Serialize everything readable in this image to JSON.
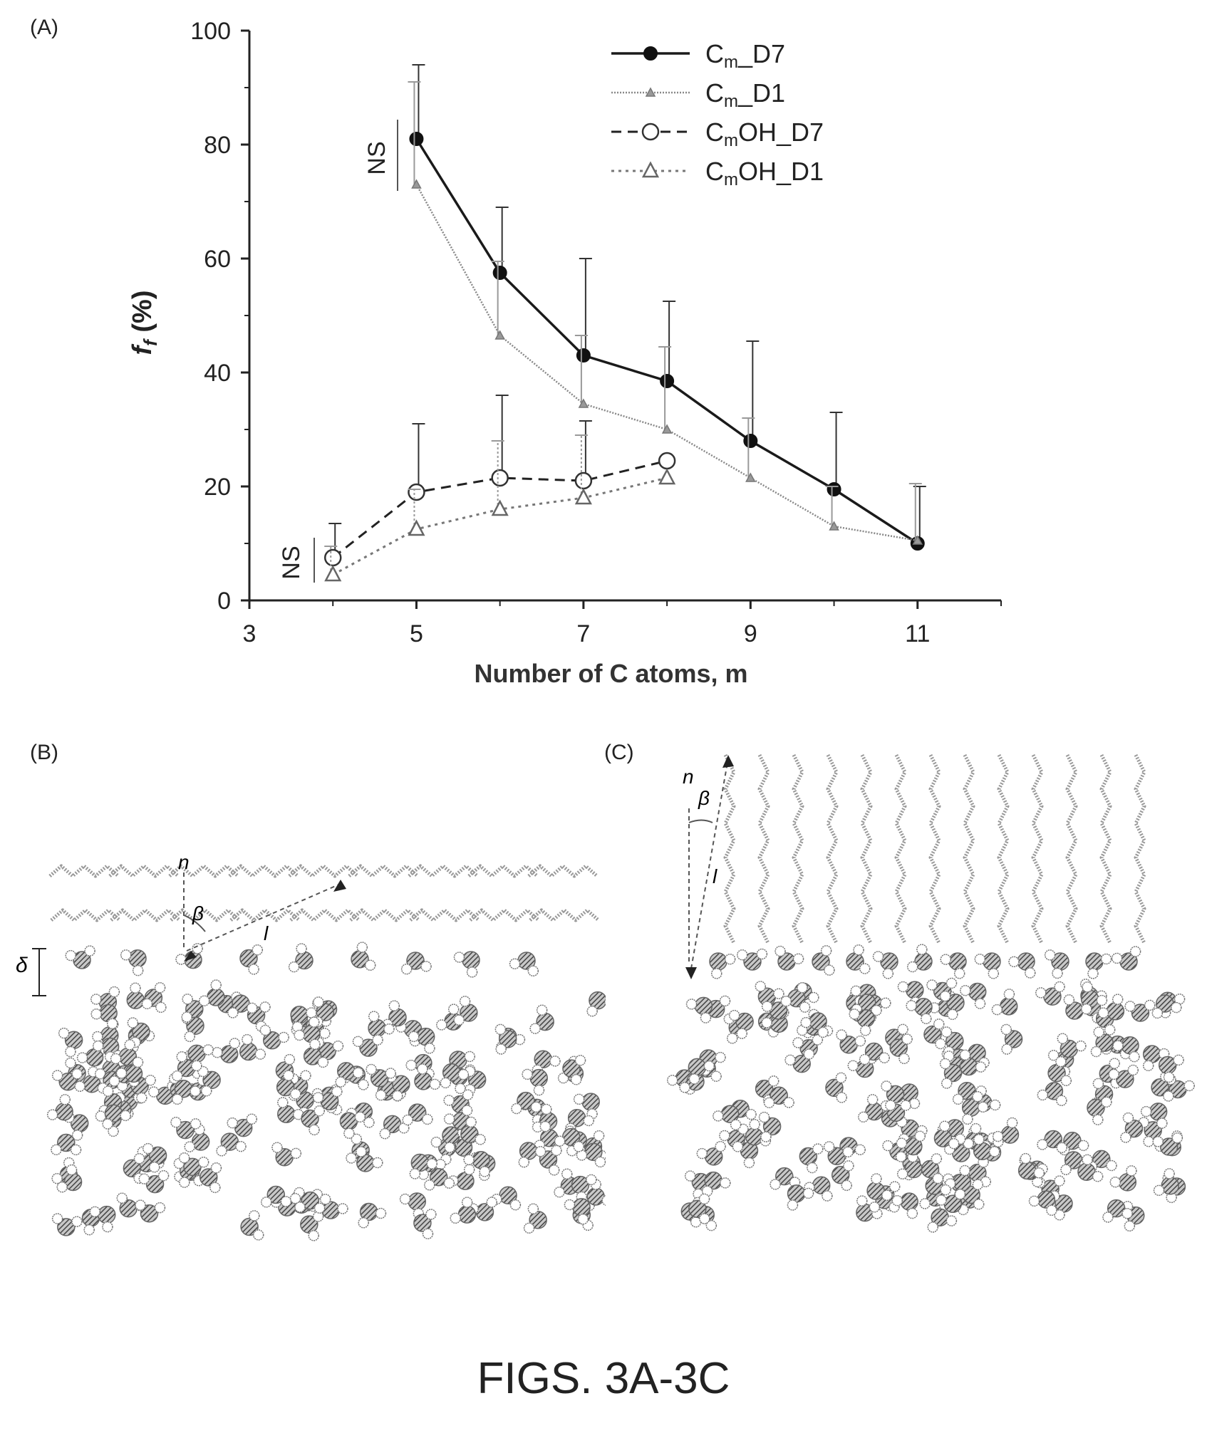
{
  "panels": {
    "a": "(A)",
    "b": "(B)",
    "c": "(C)"
  },
  "figure_title": "FIGS. 3A-3C",
  "chart_data": {
    "type": "line",
    "xlabel": "Number of C atoms, m",
    "ylabel_main": "f",
    "ylabel_sub": "f",
    "ylabel_unit": "(%)",
    "xlim": [
      3,
      12
    ],
    "ylim": [
      0,
      100
    ],
    "xticks": [
      3,
      5,
      7,
      9,
      11
    ],
    "yticks": [
      0,
      20,
      40,
      60,
      80,
      100
    ],
    "legend_position": "top-right",
    "annotations": [
      "NS",
      "NS"
    ],
    "series": [
      {
        "name": "C_m_D7",
        "label_base": "C",
        "label_sub": "m",
        "label_tail": "_D7",
        "marker": "filled-circle",
        "line": "solid",
        "x": [
          5,
          6,
          7,
          8,
          9,
          10,
          11
        ],
        "y": [
          81,
          57.5,
          43,
          38.5,
          28,
          19.5,
          10
        ],
        "err": [
          13,
          11.5,
          17,
          14,
          17.5,
          13.5,
          10
        ]
      },
      {
        "name": "C_m_D1",
        "label_base": "C",
        "label_sub": "m",
        "label_tail": "_D1",
        "marker": "small-triangle",
        "line": "thin-dotted",
        "x": [
          5,
          6,
          7,
          8,
          9,
          10,
          11
        ],
        "y": [
          73,
          46.5,
          34.5,
          30,
          21.5,
          13,
          10.5
        ],
        "err": [
          18,
          13,
          12,
          14.5,
          10.5,
          7,
          10
        ]
      },
      {
        "name": "C_mOH_D7",
        "label_base": "C",
        "label_sub": "m",
        "label_tail": "OH_D7",
        "marker": "open-circle",
        "line": "dashed",
        "x": [
          4,
          5,
          6,
          7,
          8
        ],
        "y": [
          7.5,
          19,
          21.5,
          21,
          24.5
        ],
        "err": [
          6,
          12,
          14.5,
          10.5,
          0
        ]
      },
      {
        "name": "C_mOH_D1",
        "label_base": "C",
        "label_sub": "m",
        "label_tail": "OH_D1",
        "marker": "open-triangle",
        "line": "dotted",
        "x": [
          4,
          5,
          6,
          7,
          8
        ],
        "y": [
          4.5,
          12.5,
          16,
          18,
          21.5
        ],
        "err": [
          5,
          7,
          12,
          11,
          0
        ]
      }
    ]
  },
  "diagram_b": {
    "symbols": {
      "n": "n",
      "beta": "β",
      "l": "l",
      "delta": "δ"
    }
  },
  "diagram_c": {
    "symbols": {
      "n": "n",
      "beta": "β",
      "l": "l"
    }
  }
}
